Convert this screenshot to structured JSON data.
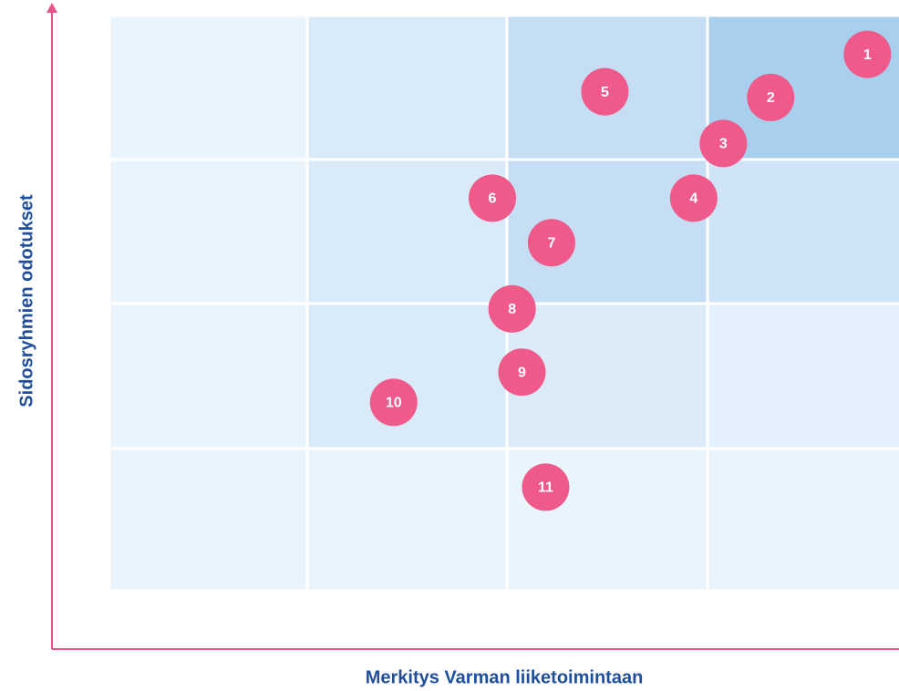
{
  "chart_data": {
    "type": "scatter",
    "x_label": "Merkitys Varman liiketoimintaan",
    "y_label": "Sidosryhmien odotukset",
    "labels": [
      "1",
      "2",
      "3",
      "4",
      "5",
      "6",
      "7",
      "8",
      "9",
      "10",
      "11"
    ],
    "x": [
      3.84,
      3.35,
      3.11,
      2.96,
      2.51,
      1.94,
      2.24,
      2.04,
      2.09,
      1.44,
      2.21
    ],
    "values": [
      3.73,
      3.43,
      3.11,
      2.73,
      3.47,
      2.73,
      2.42,
      1.96,
      1.52,
      1.31,
      0.72
    ],
    "color": "#ef5a8b",
    "axis_color": "#e8528a",
    "xlim": [
      0,
      4
    ],
    "ylim": [
      0,
      4
    ]
  }
}
